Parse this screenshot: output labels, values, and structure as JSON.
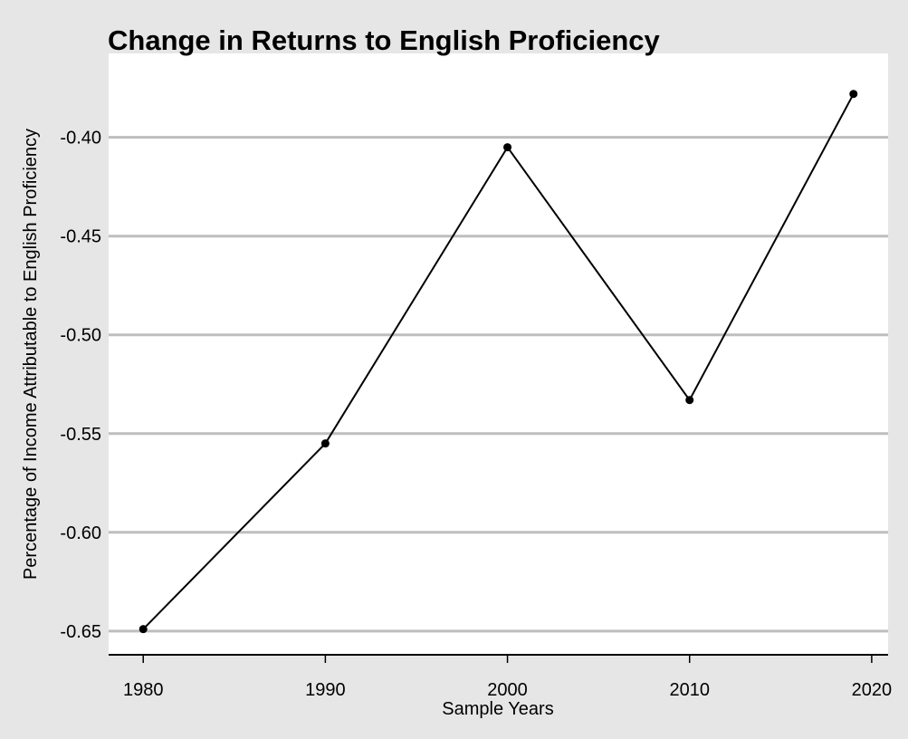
{
  "chart_data": {
    "type": "line",
    "title": "Change in Returns to English Proficiency",
    "xlabel": "Sample Years",
    "ylabel": "Percentage of Income Attributable to English Proficiency",
    "x": [
      1980,
      1990,
      2000,
      2010,
      2019
    ],
    "series": [
      {
        "values": [
          -0.649,
          -0.555,
          -0.405,
          -0.533,
          -0.378
        ]
      }
    ],
    "xticks": [
      1980,
      1990,
      2000,
      2010,
      2020
    ],
    "xtick_labels": [
      "1980",
      "1990",
      "2000",
      "2010",
      "2020"
    ],
    "yticks": [
      -0.4,
      -0.45,
      -0.5,
      -0.55,
      -0.6,
      -0.65
    ],
    "ytick_labels": [
      "-0.40",
      "-0.45",
      "-0.50",
      "-0.55",
      "-0.60",
      "-0.65"
    ],
    "xlim": [
      1978.1,
      2020.9
    ],
    "ylim": [
      -0.662,
      -0.3575
    ],
    "grid": "horizontal",
    "colors": {
      "background": "#e6e6e6",
      "panel": "#ffffff",
      "grid": "#bebebe",
      "line": "#000000",
      "point": "#000000"
    }
  }
}
